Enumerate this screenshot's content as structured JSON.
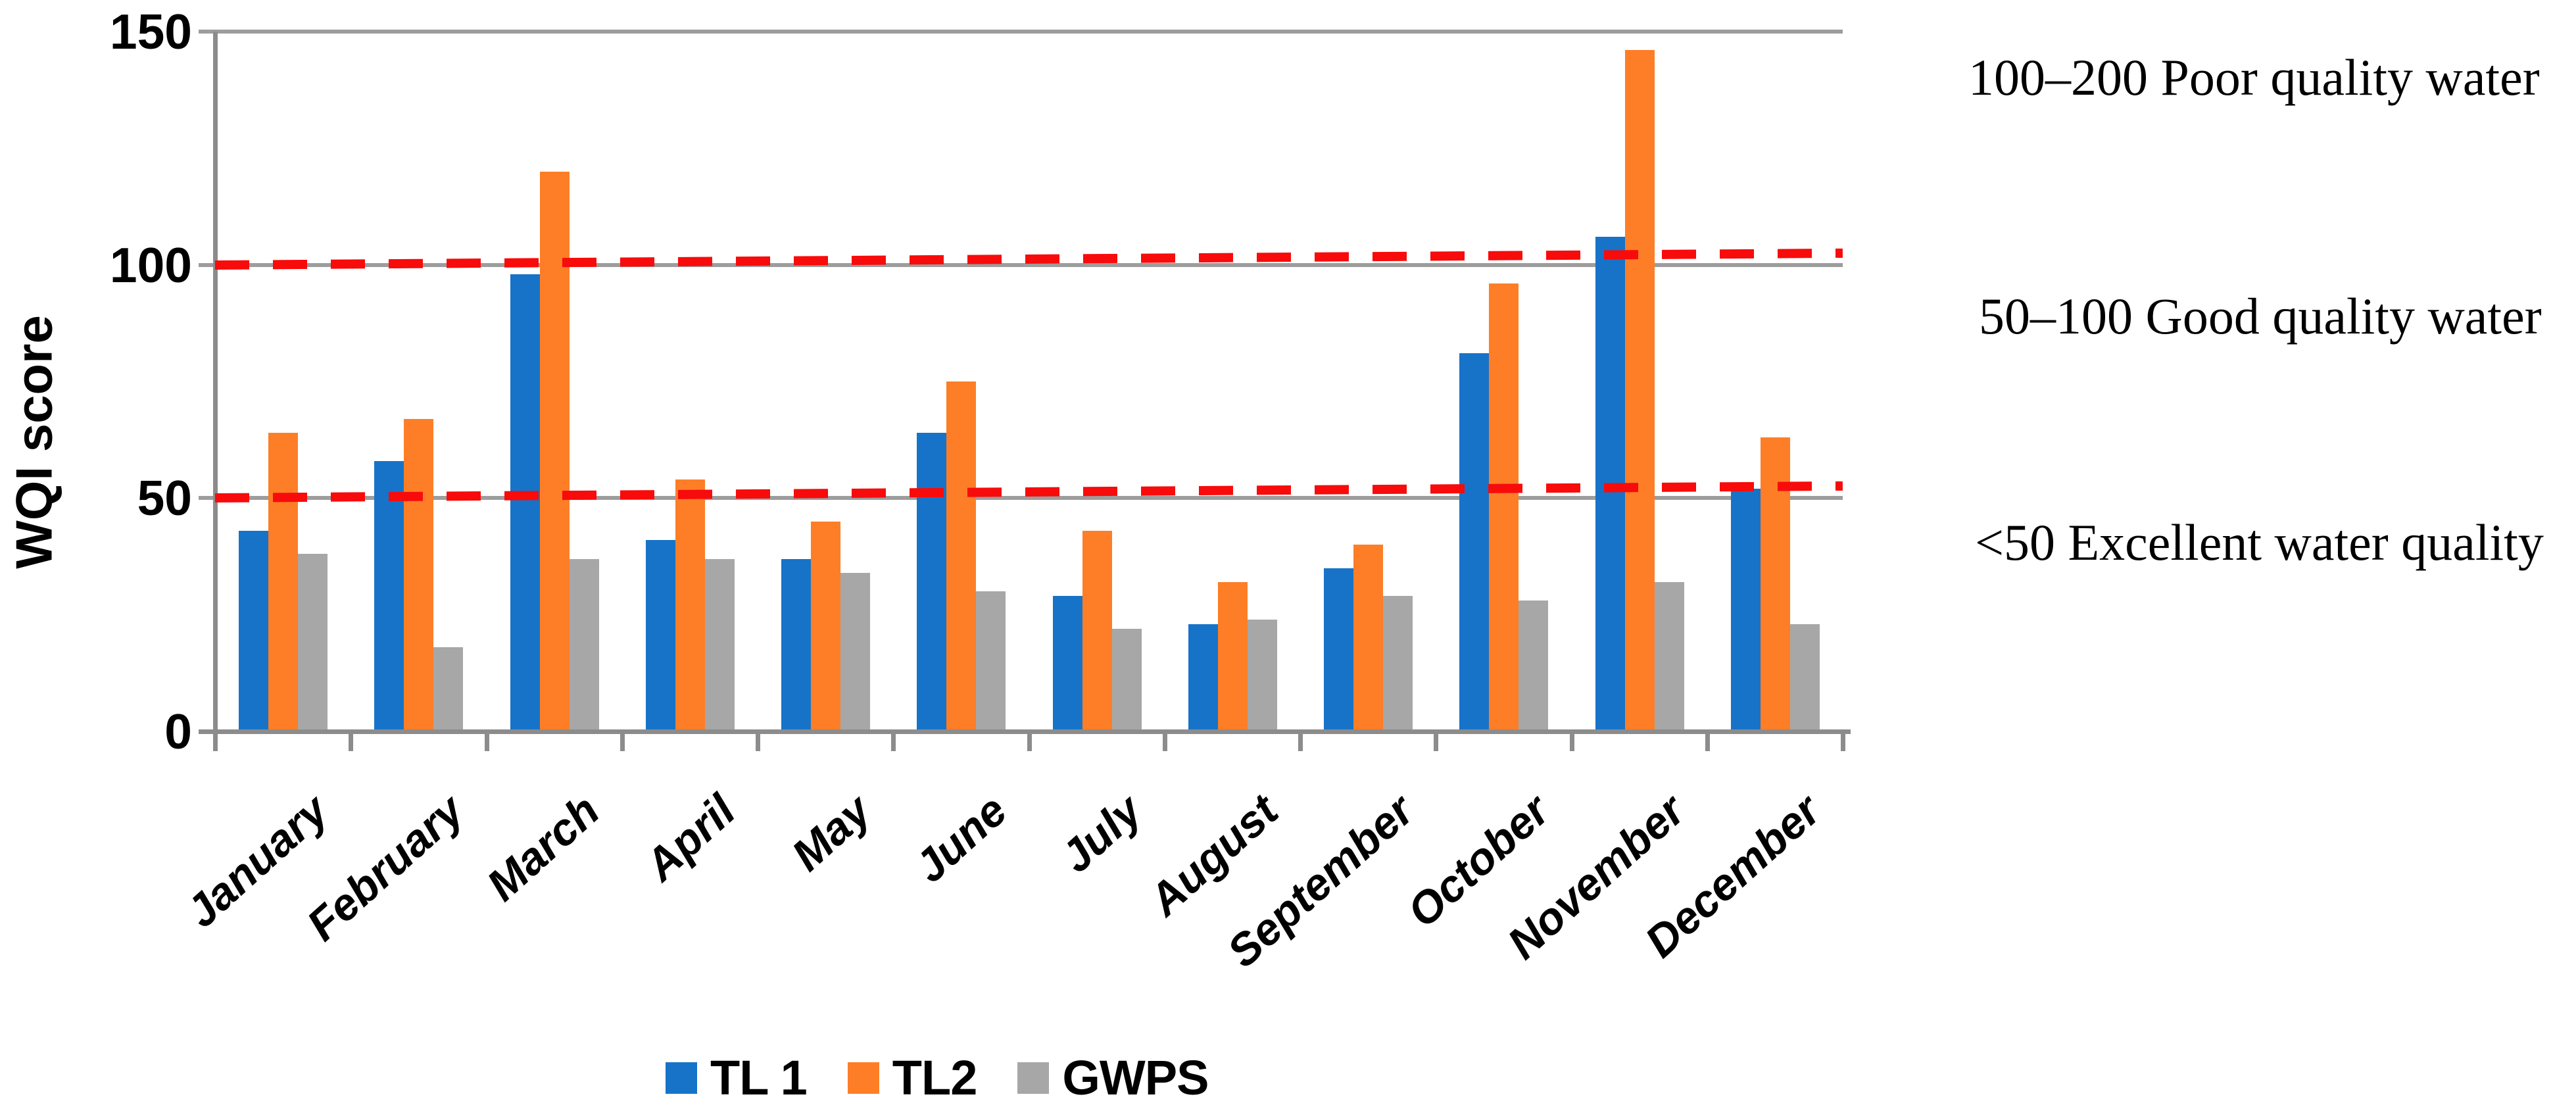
{
  "chart_data": {
    "type": "bar",
    "title": "",
    "xlabel": "",
    "ylabel": "WQI score",
    "ylim": [
      0,
      150
    ],
    "yticks": [
      0,
      50,
      100,
      150
    ],
    "grid": true,
    "legend_position": "bottom-center",
    "categories": [
      "January",
      "February",
      "March",
      "April",
      "May",
      "June",
      "July",
      "August",
      "September",
      "October",
      "November",
      "December"
    ],
    "series": [
      {
        "name": "TL 1",
        "color": "#1773C8",
        "values": [
          43,
          58,
          98,
          41,
          37,
          64,
          29,
          23,
          35,
          81,
          106,
          52
        ]
      },
      {
        "name": "TL2",
        "color": "#FD7E27",
        "values": [
          64,
          67,
          120,
          54,
          45,
          75,
          43,
          32,
          40,
          96,
          146,
          63
        ]
      },
      {
        "name": "GWPS",
        "color": "#A7A7A7",
        "values": [
          38,
          18,
          37,
          37,
          34,
          30,
          22,
          24,
          29,
          28,
          32,
          23
        ]
      }
    ],
    "threshold_lines": [
      {
        "value": 100,
        "color": "#F80B0B",
        "style": "dashed"
      },
      {
        "value": 50,
        "color": "#F80B0B",
        "style": "dashed"
      }
    ]
  },
  "annotations": [
    {
      "text": "100–200 Poor quality water"
    },
    {
      "text": "50–100 Good quality water"
    },
    {
      "text": "<50 Excellent water quality"
    }
  ],
  "colors": {
    "axis": "#8C8C8C",
    "gridline": "#9D9D9D",
    "threshold_red": "#F80B0B"
  }
}
